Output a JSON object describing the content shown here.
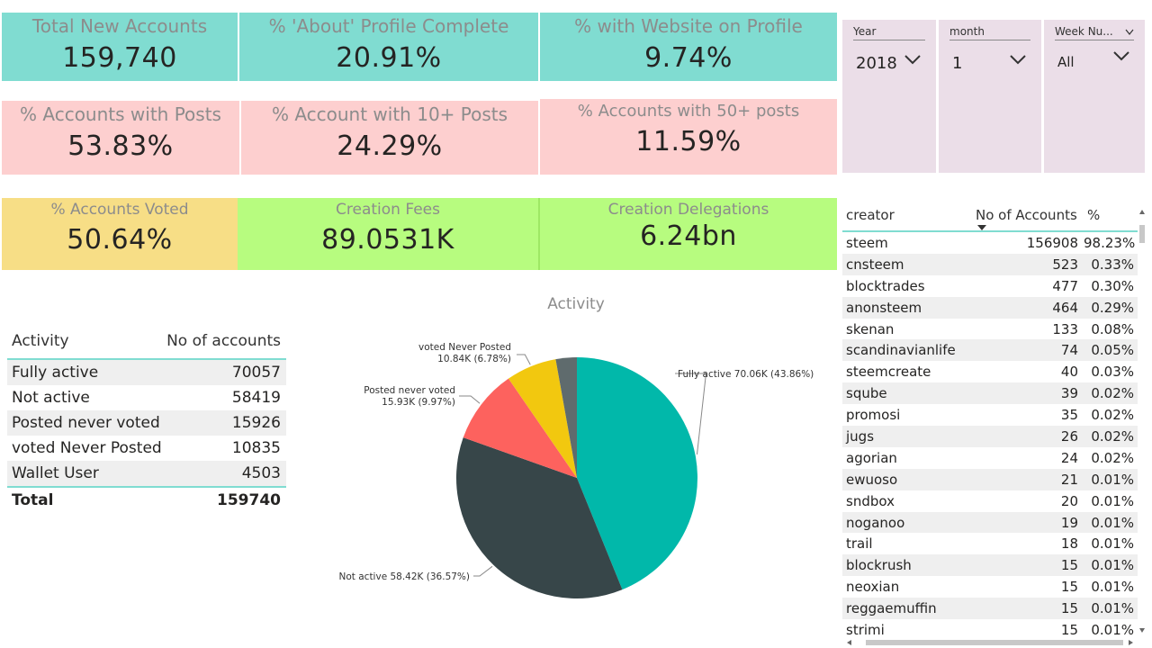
{
  "kpis": {
    "total_new_accounts": {
      "label": "Total New Accounts",
      "value": "159,740"
    },
    "about_profile_complete": {
      "label": "% 'About' Profile Complete",
      "value": "20.91%"
    },
    "website_on_profile": {
      "label": "% with Website on Profile",
      "value": "9.74%"
    },
    "accounts_with_posts": {
      "label": "%  Accounts with Posts",
      "value": "53.83%"
    },
    "accounts_10_posts": {
      "label": "% Account with 10+ Posts",
      "value": "24.29%"
    },
    "accounts_50_posts": {
      "label": "% Accounts with 50+ posts",
      "value": "11.59%"
    },
    "accounts_voted": {
      "label": "% Accounts Voted",
      "value": "50.64%"
    },
    "creation_fees": {
      "label": "Creation Fees",
      "value": "89.0531K"
    },
    "creation_delegations": {
      "label": "Creation Delegations",
      "value": "6.24bn"
    }
  },
  "slicers": {
    "year": {
      "label": "Year",
      "value": "2018"
    },
    "month": {
      "label": "month",
      "value": "1"
    },
    "week": {
      "label": "Week Nu...",
      "value": "All"
    }
  },
  "activity_table": {
    "col_activity": "Activity",
    "col_accounts": "No of accounts",
    "rows": [
      {
        "activity": "Fully active",
        "accounts": "70057"
      },
      {
        "activity": "Not active",
        "accounts": "58419"
      },
      {
        "activity": "Posted never voted",
        "accounts": "15926"
      },
      {
        "activity": "voted Never Posted",
        "accounts": "10835"
      },
      {
        "activity": "Wallet User",
        "accounts": "4503"
      }
    ],
    "total_label": "Total",
    "total_value": "159740"
  },
  "chart_data": {
    "type": "pie",
    "title": "Activity",
    "slices": [
      {
        "label": "Fully active",
        "value": 70057,
        "display": "Fully active 70.06K (43.86%)",
        "color": "#01b8aa"
      },
      {
        "label": "Not active",
        "value": 58419,
        "display": "Not active 58.42K (36.57%)",
        "color": "#374649"
      },
      {
        "label": "Posted never voted",
        "value": 15926,
        "display_line1": "Posted never voted",
        "display_line2": "15.93K (9.97%)",
        "color": "#fd625e"
      },
      {
        "label": "voted Never Posted",
        "value": 10835,
        "display_line1": "voted Never Posted",
        "display_line2": "10.84K (6.78%)",
        "color": "#f2c80f"
      },
      {
        "label": "Wallet User",
        "value": 4503,
        "color": "#5f6b6d"
      }
    ]
  },
  "creator_table": {
    "col_creator": "creator",
    "col_accounts": "No of Accounts",
    "col_pct": "%",
    "rows": [
      {
        "creator": "steem",
        "accounts": "156908",
        "pct": "98.23%"
      },
      {
        "creator": "cnsteem",
        "accounts": "523",
        "pct": "0.33%"
      },
      {
        "creator": "blocktrades",
        "accounts": "477",
        "pct": "0.30%"
      },
      {
        "creator": "anonsteem",
        "accounts": "464",
        "pct": "0.29%"
      },
      {
        "creator": "skenan",
        "accounts": "133",
        "pct": "0.08%"
      },
      {
        "creator": "scandinavianlife",
        "accounts": "74",
        "pct": "0.05%"
      },
      {
        "creator": "steemcreate",
        "accounts": "40",
        "pct": "0.03%"
      },
      {
        "creator": "sqube",
        "accounts": "39",
        "pct": "0.02%"
      },
      {
        "creator": "promosi",
        "accounts": "35",
        "pct": "0.02%"
      },
      {
        "creator": "jugs",
        "accounts": "26",
        "pct": "0.02%"
      },
      {
        "creator": "agorian",
        "accounts": "24",
        "pct": "0.02%"
      },
      {
        "creator": "ewuoso",
        "accounts": "21",
        "pct": "0.01%"
      },
      {
        "creator": "sndbox",
        "accounts": "20",
        "pct": "0.01%"
      },
      {
        "creator": "noganoo",
        "accounts": "19",
        "pct": "0.01%"
      },
      {
        "creator": "trail",
        "accounts": "18",
        "pct": "0.01%"
      },
      {
        "creator": "blockrush",
        "accounts": "15",
        "pct": "0.01%"
      },
      {
        "creator": "neoxian",
        "accounts": "15",
        "pct": "0.01%"
      },
      {
        "creator": "reggaemuffin",
        "accounts": "15",
        "pct": "0.01%"
      },
      {
        "creator": "strimi",
        "accounts": "15",
        "pct": "0.01%"
      }
    ]
  },
  "colors": {
    "teal_card": "#80dcd1",
    "pink_card": "#fdcfcf",
    "yellow_card": "#f7de86",
    "green_card": "#b7fc7f",
    "slicer_bg": "#ebdee8"
  }
}
